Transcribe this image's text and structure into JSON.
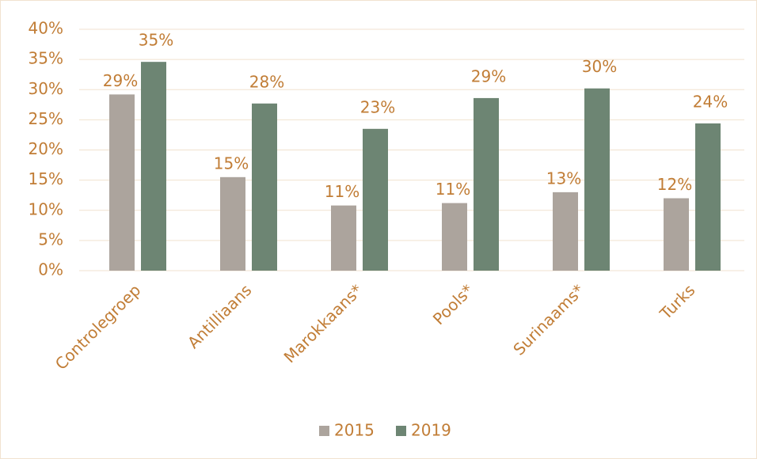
{
  "chart_data": {
    "type": "bar",
    "categories": [
      "Controlegroep",
      "Antilliaans",
      "Marokkaans*",
      "Pools*",
      "Surinaams*",
      "Turks"
    ],
    "series": [
      {
        "name": "2015",
        "color": "#aca49d",
        "values": [
          29.2,
          15.5,
          10.8,
          11.2,
          13,
          12
        ],
        "value_labels": [
          "29%",
          "15%",
          "11%",
          "11%",
          "13%",
          "12%"
        ]
      },
      {
        "name": "2019",
        "color": "#6d8573",
        "values": [
          34.6,
          27.7,
          23.5,
          28.6,
          30.2,
          24.4
        ],
        "value_labels": [
          "35%",
          "28%",
          "23%",
          "29%",
          "30%",
          "24%"
        ]
      }
    ],
    "ylim": [
      0,
      40
    ],
    "yticks": [
      {
        "value": 0,
        "label": "0%"
      },
      {
        "value": 5,
        "label": "5%"
      },
      {
        "value": 10,
        "label": "10%"
      },
      {
        "value": 15,
        "label": "15%"
      },
      {
        "value": 20,
        "label": "20%"
      },
      {
        "value": 25,
        "label": "25%"
      },
      {
        "value": 30,
        "label": "30%"
      },
      {
        "value": 35,
        "label": "35%"
      },
      {
        "value": 40,
        "label": "40%"
      }
    ],
    "grid": true,
    "legend": "bottom"
  }
}
